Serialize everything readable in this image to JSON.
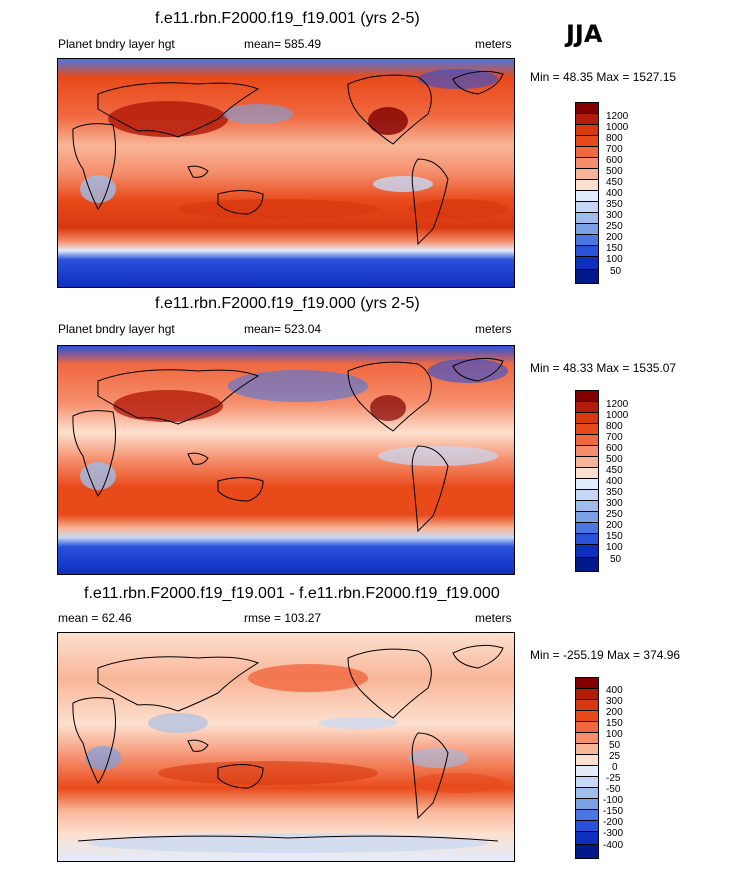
{
  "season": "JJA",
  "panels": [
    {
      "title": "f.e11.rbn.F2000.f19_f19.001 (yrs 2-5)",
      "left_label": "Planet bndry layer hgt",
      "center_label": "mean= 585.49",
      "units": "meters",
      "minmax": "Min =  48.35 Max = 1527.15",
      "levels": [
        "1200",
        "1000",
        "800",
        "700",
        "600",
        "500",
        "450",
        "400",
        "350",
        "300",
        "250",
        "200",
        "150",
        "100",
        "50"
      ],
      "colors": [
        "#800000",
        "#b41c0a",
        "#d8380f",
        "#e84a1a",
        "#f06840",
        "#f58e6c",
        "#f8b698",
        "#fde0cf",
        "#e2ecfb",
        "#c6d8f5",
        "#9ebde9",
        "#7aa2e3",
        "#4a77e2",
        "#2a51dc",
        "#0e2fbe",
        "#001a8a"
      ]
    },
    {
      "title": "f.e11.rbn.F2000.f19_f19.000 (yrs 2-5)",
      "left_label": "Planet bndry layer hgt",
      "center_label": "mean= 523.04",
      "units": "meters",
      "minmax": "Min =  48.33 Max = 1535.07",
      "levels": [
        "1200",
        "1000",
        "800",
        "700",
        "600",
        "500",
        "450",
        "400",
        "350",
        "300",
        "250",
        "200",
        "150",
        "100",
        "50"
      ],
      "colors": [
        "#800000",
        "#b41c0a",
        "#d8380f",
        "#e84a1a",
        "#f06840",
        "#f58e6c",
        "#f8b698",
        "#fde0cf",
        "#e2ecfb",
        "#c6d8f5",
        "#9ebde9",
        "#7aa2e3",
        "#4a77e2",
        "#2a51dc",
        "#0e2fbe",
        "#001a8a"
      ]
    },
    {
      "title": "f.e11.rbn.F2000.f19_f19.001 - f.e11.rbn.F2000.f19_f19.000",
      "left_label": "mean =  62.46",
      "center_label": "rmse = 103.27",
      "units": "meters",
      "minmax": "Min = -255.19 Max = 374.96",
      "levels": [
        "400",
        "300",
        "200",
        "150",
        "100",
        "50",
        "25",
        "0",
        "-25",
        "-50",
        "-100",
        "-150",
        "-200",
        "-300",
        "-400"
      ],
      "colors": [
        "#800000",
        "#b41c0a",
        "#d8380f",
        "#e84a1a",
        "#f06840",
        "#f58e6c",
        "#f8b698",
        "#fde0cf",
        "#e2ecfb",
        "#c6d8f5",
        "#9ebde9",
        "#7aa2e3",
        "#4a77e2",
        "#2a51dc",
        "#0e2fbe",
        "#001a8a"
      ]
    }
  ]
}
